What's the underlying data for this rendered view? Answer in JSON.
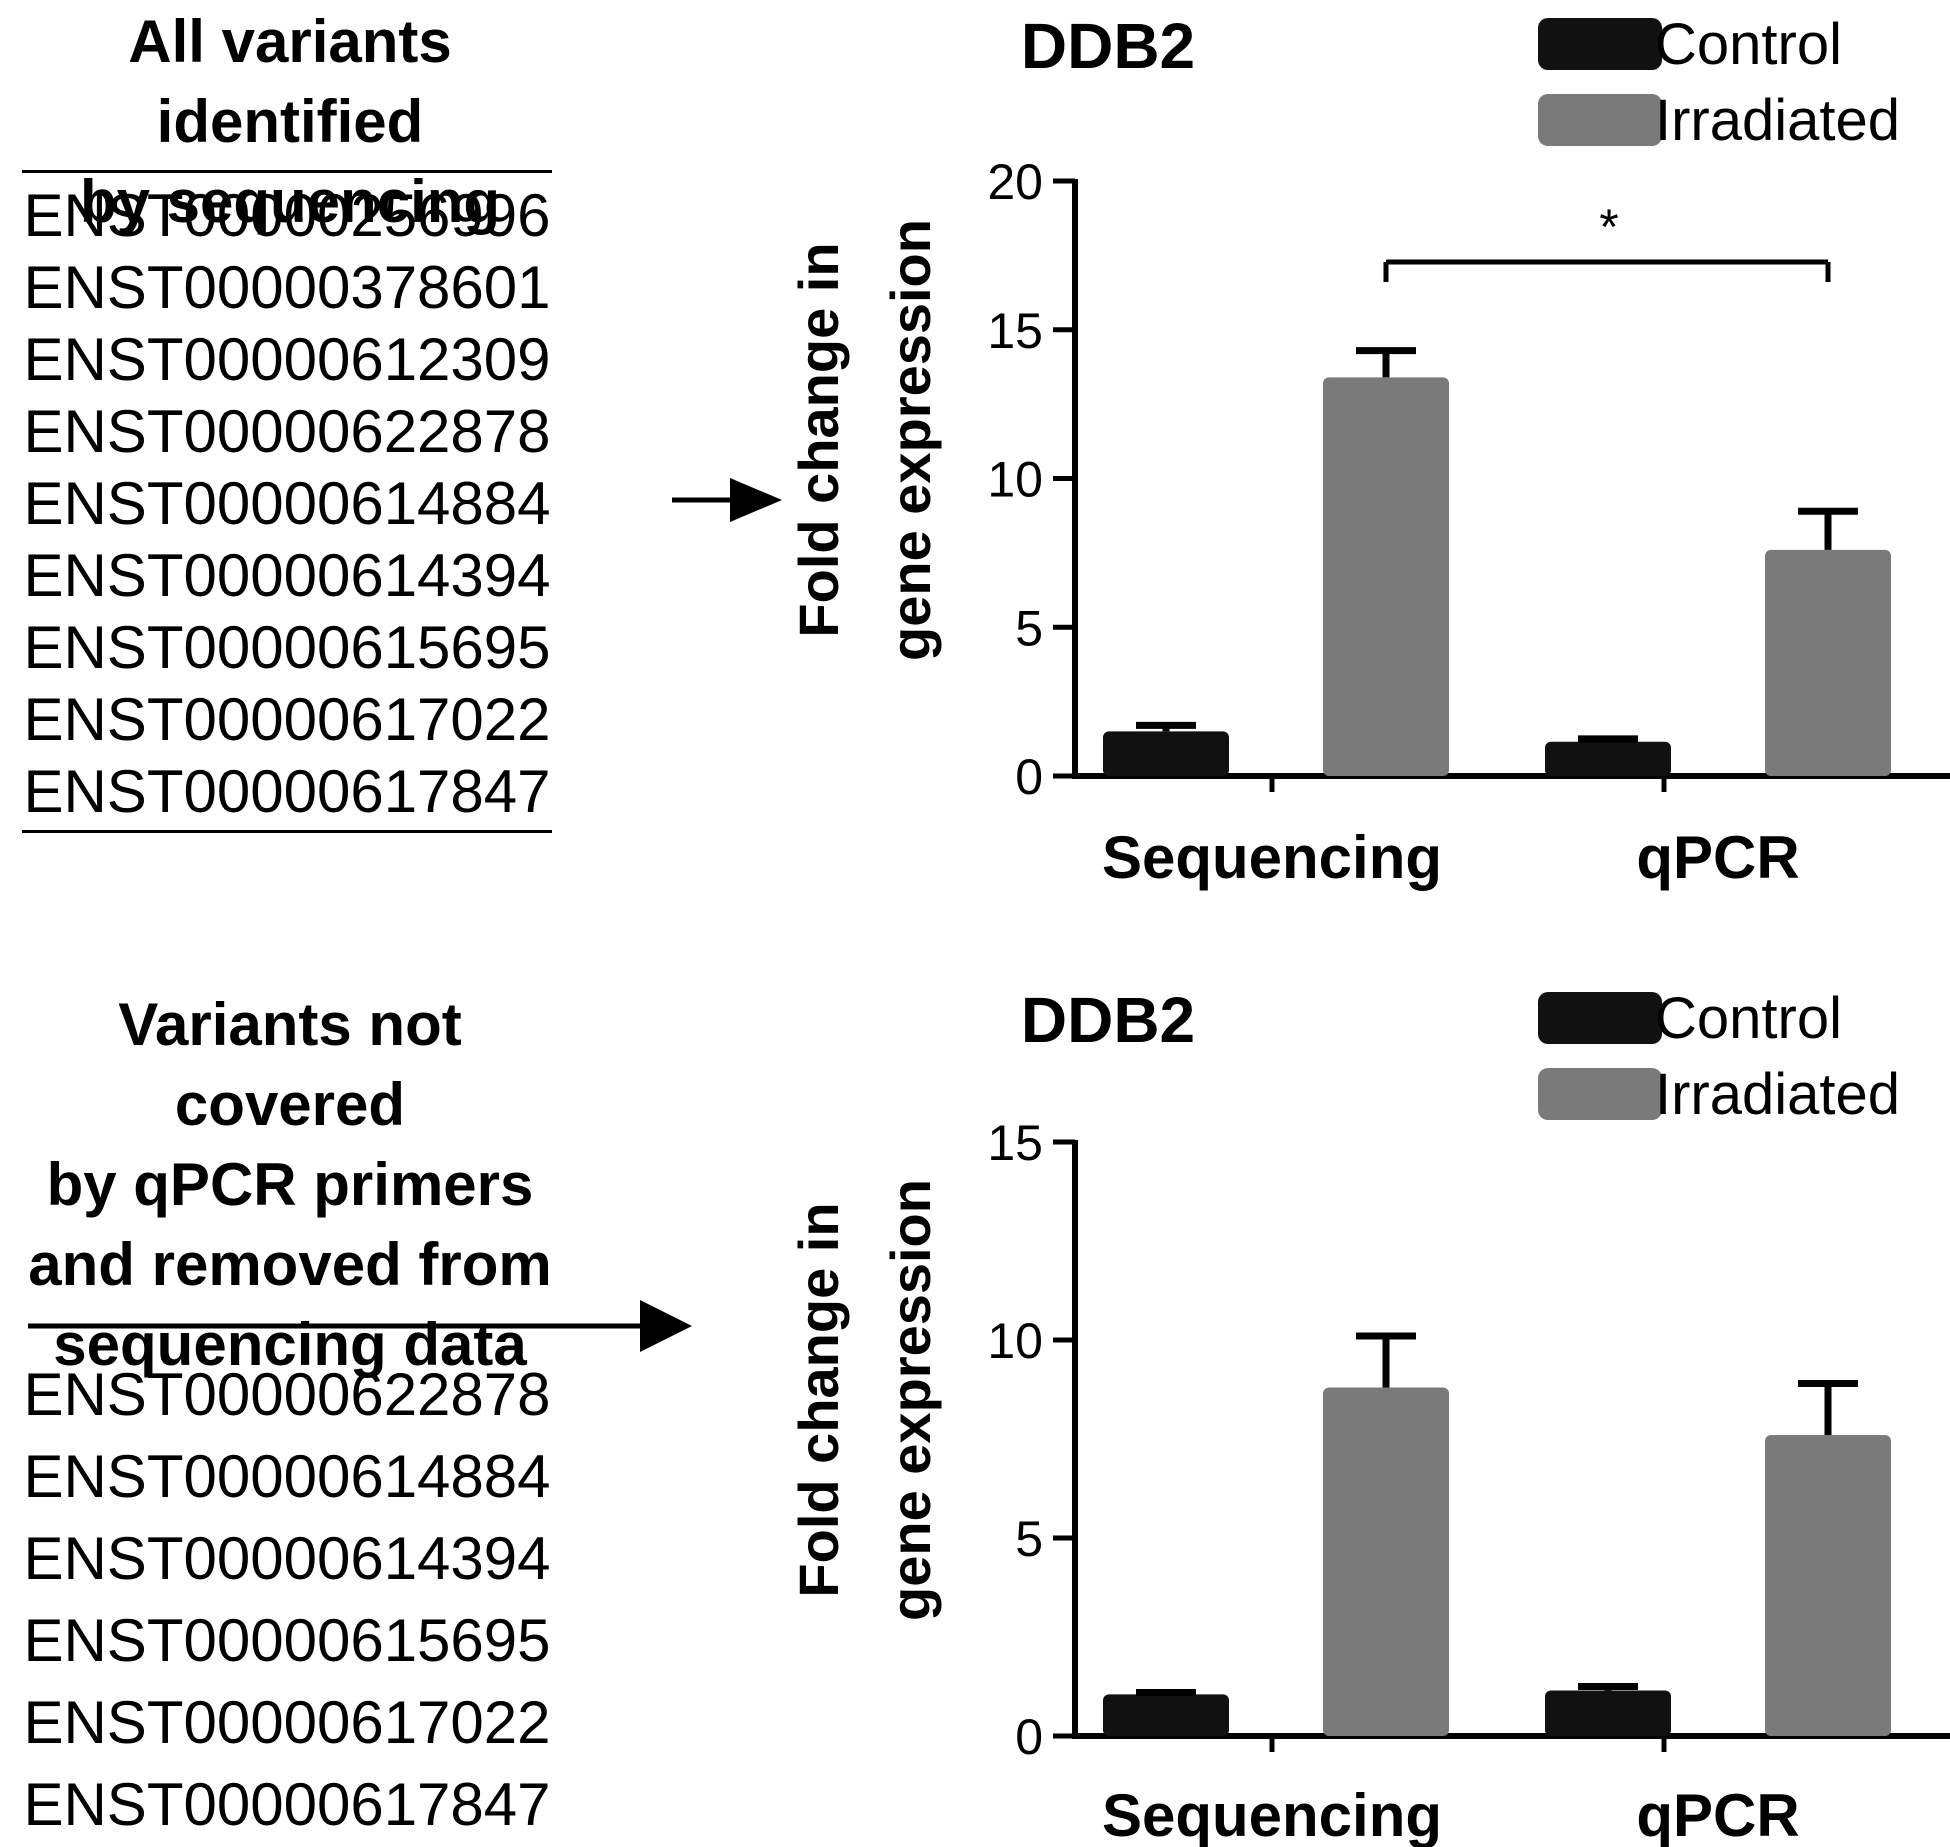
{
  "top_panel": {
    "heading_line1": "All variants identified",
    "heading_line2": "by sequencing",
    "variants": [
      "ENST00000256996",
      "ENST00000378601",
      "ENST00000612309",
      "ENST00000622878",
      "ENST00000614884",
      "ENST00000614394",
      "ENST00000615695",
      "ENST00000617022",
      "ENST00000617847"
    ]
  },
  "bottom_panel": {
    "heading_line1": "Variants not covered",
    "heading_line2": "by qPCR primers",
    "heading_line3": "and removed from",
    "heading_line4": "sequencing data",
    "variants": [
      "ENST00000622878",
      "ENST00000614884",
      "ENST00000614394",
      "ENST00000615695",
      "ENST00000617022",
      "ENST00000617847"
    ]
  },
  "colors": {
    "control": "#111111",
    "irradiated": "#7a7a7a"
  },
  "chart_data": [
    {
      "type": "bar",
      "title": "DDB2",
      "ylabel_line1": "Fold change in",
      "ylabel_line2": "gene expression",
      "categories": [
        "Sequencing",
        "qPCR"
      ],
      "ylim": [
        0,
        20
      ],
      "yticks": [
        "0",
        "5",
        "10",
        "15",
        "20"
      ],
      "series": [
        {
          "name": "Control",
          "values": [
            1.5,
            1.15
          ],
          "errors": [
            0.2,
            0.1
          ]
        },
        {
          "name": "Irradiated",
          "values": [
            13.4,
            7.6
          ],
          "errors": [
            0.9,
            1.3
          ]
        }
      ],
      "significance": {
        "label": "*"
      },
      "legend": "top-right"
    },
    {
      "type": "bar",
      "title": "DDB2",
      "ylabel_line1": "Fold change in",
      "ylabel_line2": "gene expression",
      "categories": [
        "Sequencing",
        "qPCR"
      ],
      "ylim": [
        0,
        15
      ],
      "yticks": [
        "0",
        "5",
        "10",
        "15"
      ],
      "series": [
        {
          "name": "Control",
          "values": [
            1.05,
            1.15
          ],
          "errors": [
            0.05,
            0.1
          ]
        },
        {
          "name": "Irradiated",
          "values": [
            8.8,
            7.6
          ],
          "errors": [
            1.3,
            1.3
          ]
        }
      ],
      "legend": "top-right"
    }
  ]
}
